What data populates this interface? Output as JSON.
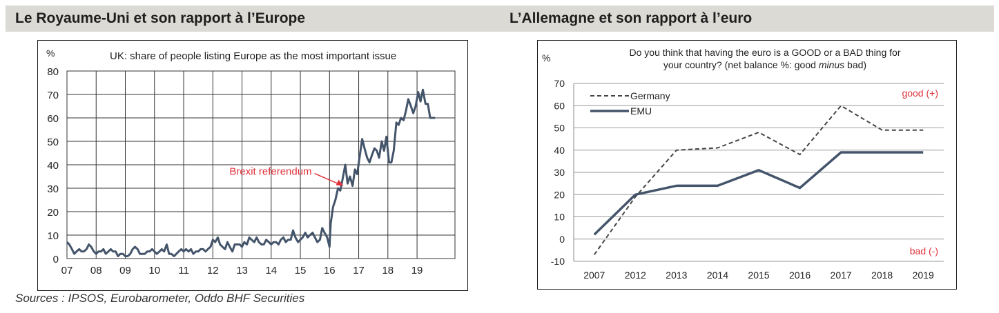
{
  "left_panel": {
    "section_title": "Le Royaume-Uni et son rapport à l’Europe"
  },
  "right_panel": {
    "section_title": "L’Allemagne et son rapport à l’euro"
  },
  "sources": "Sources : IPSOS, Eurobarometer, Oddo BHF Securities",
  "chart_data": [
    {
      "type": "line",
      "title": "UK: share of people listing Europe as the most important issue",
      "ylabel": "%",
      "xlabel": "",
      "ylim": [
        0,
        80
      ],
      "xlim": [
        2007,
        2020.3
      ],
      "yticks": [
        0,
        10,
        20,
        30,
        40,
        50,
        60,
        70,
        80
      ],
      "xticks": [
        {
          "value": 2007,
          "label": "07"
        },
        {
          "value": 2008,
          "label": "08"
        },
        {
          "value": 2009,
          "label": "09"
        },
        {
          "value": 2010,
          "label": "10"
        },
        {
          "value": 2011,
          "label": "11"
        },
        {
          "value": 2012,
          "label": "12"
        },
        {
          "value": 2013,
          "label": "13"
        },
        {
          "value": 2014,
          "label": "14"
        },
        {
          "value": 2015,
          "label": "15"
        },
        {
          "value": 2016,
          "label": "16"
        },
        {
          "value": 2017,
          "label": "17"
        },
        {
          "value": 2018,
          "label": "18"
        },
        {
          "value": 2019,
          "label": "19"
        }
      ],
      "grid": true,
      "line_color": "#44546a",
      "annotation": {
        "text": "Brexit referendum",
        "x": 2016.48,
        "y": 31,
        "color": "#e0303a"
      },
      "series": [
        {
          "x": [
            2007.0,
            2007.08,
            2007.17,
            2007.25,
            2007.33,
            2007.42,
            2007.5,
            2007.58,
            2007.67,
            2007.75,
            2007.83,
            2007.92,
            2008.0,
            2008.08,
            2008.17,
            2008.25,
            2008.33,
            2008.42,
            2008.5,
            2008.58,
            2008.67,
            2008.75,
            2008.83,
            2008.92,
            2009.0,
            2009.08,
            2009.17,
            2009.25,
            2009.33,
            2009.42,
            2009.5,
            2009.58,
            2009.67,
            2009.75,
            2009.83,
            2009.92,
            2010.0,
            2010.08,
            2010.17,
            2010.25,
            2010.33,
            2010.42,
            2010.5,
            2010.58,
            2010.67,
            2010.75,
            2010.83,
            2010.92,
            2011.0,
            2011.08,
            2011.17,
            2011.25,
            2011.33,
            2011.42,
            2011.5,
            2011.58,
            2011.67,
            2011.75,
            2011.83,
            2011.92,
            2012.0,
            2012.08,
            2012.17,
            2012.25,
            2012.33,
            2012.42,
            2012.5,
            2012.58,
            2012.67,
            2012.75,
            2012.83,
            2012.92,
            2013.0,
            2013.08,
            2013.17,
            2013.25,
            2013.33,
            2013.42,
            2013.5,
            2013.58,
            2013.67,
            2013.75,
            2013.83,
            2013.92,
            2014.0,
            2014.08,
            2014.17,
            2014.25,
            2014.33,
            2014.42,
            2014.5,
            2014.58,
            2014.67,
            2014.75,
            2014.83,
            2014.92,
            2015.0,
            2015.08,
            2015.17,
            2015.25,
            2015.33,
            2015.42,
            2015.5,
            2015.58,
            2015.67,
            2015.75,
            2015.83,
            2015.92,
            2016.0,
            2016.04,
            2016.12,
            2016.2,
            2016.29,
            2016.37,
            2016.45,
            2016.54,
            2016.62,
            2016.7,
            2016.79,
            2016.87,
            2016.95,
            2017.04,
            2017.12,
            2017.2,
            2017.29,
            2017.37,
            2017.45,
            2017.54,
            2017.62,
            2017.7,
            2017.79,
            2017.87,
            2017.95,
            2018.04,
            2018.12,
            2018.2,
            2018.29,
            2018.37,
            2018.45,
            2018.54,
            2018.62,
            2018.7,
            2018.79,
            2018.87,
            2018.95,
            2019.04,
            2019.12,
            2019.2,
            2019.29,
            2019.37,
            2019.45,
            2019.54,
            2019.62
          ],
          "y": [
            7,
            6,
            4,
            2,
            3,
            4,
            3,
            3,
            4,
            6,
            5,
            3,
            2,
            3,
            3,
            4,
            2,
            3,
            4,
            3,
            3,
            1,
            2,
            2,
            1,
            1,
            2,
            4,
            5,
            4,
            2,
            2,
            2,
            3,
            3,
            4,
            3,
            2,
            3,
            4,
            3,
            6,
            2,
            2,
            1,
            2,
            3,
            4,
            3,
            4,
            3,
            4,
            2,
            3,
            3,
            4,
            4,
            3,
            4,
            5,
            8,
            7,
            9,
            6,
            5,
            4,
            7,
            5,
            3,
            6,
            6,
            6,
            5,
            7,
            6,
            9,
            8,
            7,
            9,
            7,
            6,
            6,
            8,
            7,
            6,
            7,
            7,
            6,
            8,
            9,
            7,
            8,
            8,
            12,
            9,
            7,
            8,
            9,
            11,
            9,
            10,
            11,
            9,
            7,
            8,
            13,
            11,
            9,
            5,
            15,
            22,
            25,
            30,
            29,
            34,
            40,
            32,
            35,
            31,
            38,
            36,
            44,
            51,
            47,
            43,
            41,
            44,
            47,
            46,
            43,
            50,
            46,
            52,
            41,
            41,
            46,
            58,
            57,
            60,
            59,
            63,
            68,
            65,
            62,
            65,
            71,
            67,
            72,
            66,
            66,
            60,
            60,
            60
          ]
        }
      ]
    },
    {
      "type": "line",
      "title": "Do you think that having  the euro is a GOOD or a BAD thing for your country?  (net balance %: good minus bad)",
      "ylabel": "%",
      "xlabel": "",
      "ylim": [
        -10,
        70
      ],
      "yticks": [
        -10,
        0,
        10,
        20,
        30,
        40,
        50,
        60,
        70
      ],
      "categories": [
        "2007",
        "2012",
        "2013",
        "2014",
        "2015",
        "2016",
        "2017",
        "2018",
        "2019"
      ],
      "grid": true,
      "legend_position": "top-left",
      "annotations": [
        {
          "text": "good (+)",
          "color": "#e0303a",
          "position": "top-right"
        },
        {
          "text": "bad (-)",
          "color": "#e0303a",
          "position": "bottom-right"
        }
      ],
      "series": [
        {
          "name": "Germany",
          "values": [
            -7,
            19,
            40,
            41,
            48,
            38,
            60,
            49,
            49
          ],
          "color": "#444444",
          "style": "dashed"
        },
        {
          "name": "EMU",
          "values": [
            2,
            20,
            24,
            24,
            31,
            23,
            39,
            39,
            39
          ],
          "color": "#44546a",
          "style": "solid"
        }
      ]
    }
  ]
}
